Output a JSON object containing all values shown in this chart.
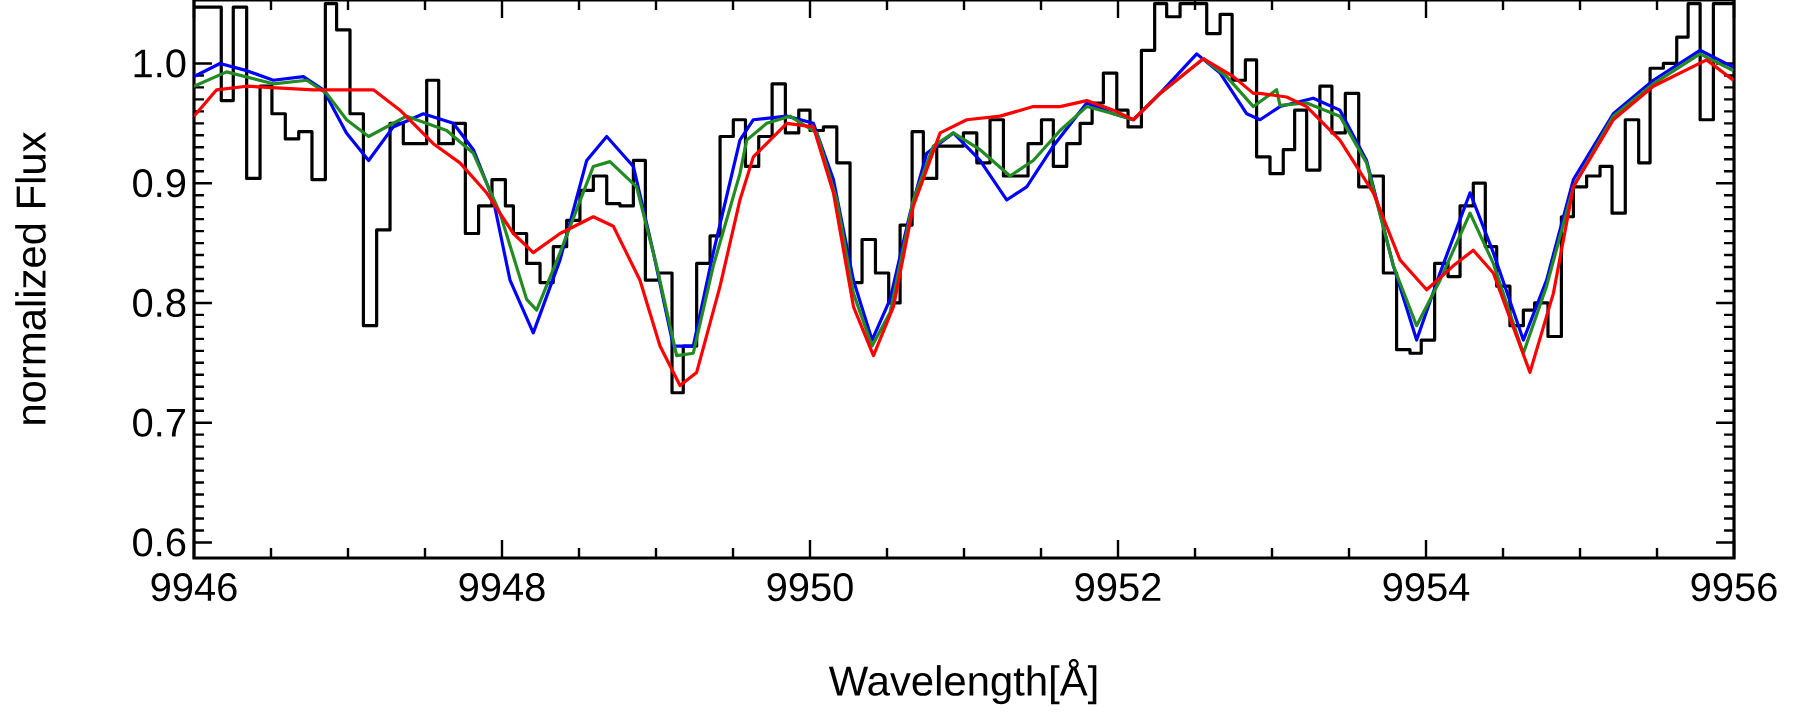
{
  "chart_data": {
    "type": "line",
    "xlabel": "Wavelength[Å]",
    "ylabel": "normalized Flux",
    "xlim": [
      9946,
      9956
    ],
    "ylim": [
      0.587,
      1.053
    ],
    "xticks": [
      9946,
      9948,
      9950,
      9952,
      9954,
      9956
    ],
    "yticks": [
      0.6,
      0.7,
      0.8,
      0.9,
      {
        "value": 1.0,
        "label": "1.0"
      }
    ],
    "marker": "none",
    "line_style": "solid",
    "series": [
      {
        "type": "step",
        "color": "#000000",
        "x": [
          9946.0,
          9946.177,
          9946.255,
          9946.342,
          9946.429,
          9946.506,
          9946.593,
          9946.68,
          9946.766,
          9946.853,
          9946.926,
          9947.013,
          9947.1,
          9947.186,
          9947.273,
          9947.359,
          9947.511,
          9947.589,
          9947.684,
          9947.762,
          9947.848,
          9947.935,
          9948.022,
          9948.074,
          9948.16,
          9948.247,
          9948.333,
          9948.42,
          9948.506,
          9948.593,
          9948.68,
          9948.766,
          9948.853,
          9948.931,
          9949.017,
          9949.104,
          9949.177,
          9949.264,
          9949.351,
          9949.416,
          9949.502,
          9949.581,
          9949.667,
          9949.754,
          9949.84,
          9949.927,
          9950.0,
          9950.087,
          9950.174,
          9950.26,
          9950.338,
          9950.425,
          9950.511,
          9950.585,
          9950.663,
          9950.736,
          9950.823,
          9950.996,
          9951.083,
          9951.169,
          9951.256,
          9951.416,
          9951.503,
          9951.58,
          9951.667,
          9951.754,
          9951.832,
          9951.905,
          9951.992,
          9952.065,
          9952.152,
          9952.238,
          9952.316,
          9952.403,
          9952.498,
          9952.576,
          9952.663,
          9952.741,
          9952.827,
          9952.9,
          9952.987,
          9953.073,
          9953.147,
          9953.225,
          9953.311,
          9953.389,
          9953.476,
          9953.563,
          9953.636,
          9953.723,
          9953.809,
          9953.896,
          9953.969,
          9954.056,
          9954.143,
          9954.221,
          9954.307,
          9954.385,
          9954.459,
          9954.545,
          9954.632,
          9954.705,
          9954.792,
          9954.879,
          9954.957,
          9955.043,
          9955.13,
          9955.208,
          9955.294,
          9955.381,
          9955.455,
          9955.541,
          9955.628,
          9955.702,
          9955.78,
          9955.866,
          9956
        ],
        "values": [
          1.047,
          0.969,
          1.047,
          0.904,
          0.981,
          0.958,
          0.937,
          0.943,
          0.903,
          1.05,
          1.028,
          0.958,
          0.781,
          0.861,
          0.95,
          0.933,
          0.986,
          0.933,
          0.95,
          0.858,
          0.881,
          0.903,
          0.881,
          0.858,
          0.833,
          0.817,
          0.847,
          0.869,
          0.894,
          0.906,
          0.883,
          0.881,
          0.919,
          0.819,
          0.825,
          0.725,
          0.764,
          0.833,
          0.856,
          0.939,
          0.953,
          0.914,
          0.939,
          0.983,
          0.942,
          0.961,
          0.944,
          0.947,
          0.917,
          0.817,
          0.853,
          0.825,
          0.8,
          0.865,
          0.943,
          0.904,
          0.931,
          0.942,
          0.917,
          0.953,
          0.906,
          0.933,
          0.953,
          0.914,
          0.933,
          0.95,
          0.967,
          0.992,
          0.961,
          0.947,
          1.011,
          1.05,
          1.039,
          1.05,
          1.05,
          1.025,
          1.041,
          0.986,
          1.003,
          0.922,
          0.908,
          0.928,
          0.961,
          0.911,
          0.981,
          0.942,
          0.975,
          0.897,
          0.906,
          0.825,
          0.761,
          0.758,
          0.769,
          0.833,
          0.822,
          0.881,
          0.9,
          0.847,
          0.814,
          0.781,
          0.794,
          0.8,
          0.772,
          0.872,
          0.897,
          0.906,
          0.914,
          0.875,
          0.953,
          0.917,
          0.996,
          1.0,
          1.022,
          1.05,
          0.953,
          1.05,
          1.05
        ]
      },
      {
        "color": "#0000ff",
        "x": [
          9946.0,
          9946.169,
          9946.342,
          9946.515,
          9946.71,
          9946.84,
          9946.99,
          9947.134,
          9947.294,
          9947.489,
          9947.684,
          9947.814,
          9947.944,
          9948.052,
          9948.203,
          9948.377,
          9948.55,
          9948.68,
          9948.853,
          9948.983,
          9949.113,
          9949.242,
          9949.372,
          9949.545,
          9949.632,
          9949.849,
          9950.022,
          9950.152,
          9950.282,
          9950.403,
          9950.52,
          9950.65,
          9950.758,
          9950.931,
          9951.104,
          9951.277,
          9951.407,
          9951.58,
          9951.797,
          9951.97,
          9952.1,
          9952.273,
          9952.511,
          9952.663,
          9952.836,
          9952.922,
          9953.052,
          9953.268,
          9953.441,
          9953.614,
          9953.788,
          9953.939,
          9954.091,
          9954.286,
          9954.437,
          9954.632,
          9954.783,
          9954.957,
          9955.216,
          9955.476,
          9955.779,
          9955.995
        ],
        "values": [
          0.989,
          1.0,
          0.994,
          0.986,
          0.989,
          0.978,
          0.942,
          0.919,
          0.947,
          0.958,
          0.95,
          0.928,
          0.886,
          0.819,
          0.775,
          0.836,
          0.919,
          0.939,
          0.914,
          0.842,
          0.764,
          0.764,
          0.842,
          0.936,
          0.953,
          0.956,
          0.95,
          0.903,
          0.819,
          0.769,
          0.803,
          0.875,
          0.925,
          0.942,
          0.919,
          0.886,
          0.897,
          0.931,
          0.967,
          0.958,
          0.953,
          0.975,
          1.008,
          0.992,
          0.958,
          0.953,
          0.964,
          0.971,
          0.961,
          0.919,
          0.831,
          0.769,
          0.825,
          0.892,
          0.842,
          0.769,
          0.819,
          0.903,
          0.958,
          0.986,
          1.011,
          0.997
        ]
      },
      {
        "color": "#228b22",
        "x": [
          9946.0,
          9946.212,
          9946.515,
          9946.732,
          9946.861,
          9946.991,
          9947.134,
          9947.381,
          9947.641,
          9947.814,
          9947.987,
          9948.16,
          9948.225,
          9948.377,
          9948.593,
          9948.701,
          9948.874,
          9949.004,
          9949.134,
          9949.242,
          9949.372,
          9949.545,
          9949.589,
          9949.719,
          9949.87,
          9950.044,
          9950.174,
          9950.282,
          9950.403,
          9950.52,
          9950.671,
          9950.801,
          9950.931,
          9951.104,
          9951.299,
          9951.45,
          9951.624,
          9951.797,
          9951.97,
          9952.1,
          9952.273,
          9952.554,
          9952.706,
          9952.879,
          9953.03,
          9953.052,
          9953.225,
          9953.441,
          9953.614,
          9953.788,
          9953.939,
          9954.091,
          9954.286,
          9954.437,
          9954.632,
          9954.783,
          9954.957,
          9955.216,
          9955.476,
          9955.779,
          9955.995
        ],
        "values": [
          0.981,
          0.993,
          0.983,
          0.986,
          0.975,
          0.953,
          0.939,
          0.956,
          0.944,
          0.925,
          0.875,
          0.803,
          0.794,
          0.842,
          0.914,
          0.918,
          0.897,
          0.831,
          0.756,
          0.758,
          0.831,
          0.908,
          0.936,
          0.95,
          0.956,
          0.942,
          0.886,
          0.808,
          0.764,
          0.792,
          0.886,
          0.931,
          0.942,
          0.928,
          0.906,
          0.919,
          0.944,
          0.964,
          0.958,
          0.953,
          0.975,
          1.004,
          0.989,
          0.964,
          0.978,
          0.965,
          0.967,
          0.956,
          0.917,
          0.831,
          0.781,
          0.819,
          0.875,
          0.833,
          0.758,
          0.814,
          0.897,
          0.956,
          0.983,
          1.008,
          0.994
        ]
      },
      {
        "color": "#ff0000",
        "x": [
          9946.0,
          9946.147,
          9946.342,
          9946.775,
          9947.165,
          9947.338,
          9947.554,
          9947.727,
          9947.9,
          9948.074,
          9948.203,
          9948.377,
          9948.593,
          9948.723,
          9948.896,
          9949.026,
          9949.156,
          9949.264,
          9949.416,
          9949.545,
          9949.632,
          9949.849,
          9950.022,
          9950.152,
          9950.282,
          9950.412,
          9950.542,
          9950.671,
          9950.845,
          9951.018,
          9951.234,
          9951.45,
          9951.624,
          9951.797,
          9951.97,
          9952.1,
          9952.273,
          9952.554,
          9952.749,
          9952.879,
          9952.922,
          9953.095,
          9953.225,
          9953.441,
          9953.658,
          9953.831,
          9954.004,
          9954.177,
          9954.307,
          9954.437,
          9954.675,
          9954.827,
          9954.957,
          9955.216,
          9955.476,
          9955.822,
          9955.995
        ],
        "values": [
          0.956,
          0.978,
          0.981,
          0.978,
          0.978,
          0.961,
          0.933,
          0.917,
          0.892,
          0.858,
          0.842,
          0.858,
          0.872,
          0.864,
          0.819,
          0.764,
          0.731,
          0.742,
          0.814,
          0.886,
          0.922,
          0.95,
          0.947,
          0.892,
          0.797,
          0.756,
          0.797,
          0.881,
          0.942,
          0.953,
          0.956,
          0.964,
          0.964,
          0.969,
          0.961,
          0.953,
          0.975,
          1.004,
          0.989,
          0.975,
          0.975,
          0.972,
          0.964,
          0.936,
          0.892,
          0.836,
          0.811,
          0.831,
          0.844,
          0.825,
          0.742,
          0.808,
          0.897,
          0.953,
          0.981,
          1.003,
          0.986
        ]
      }
    ]
  }
}
